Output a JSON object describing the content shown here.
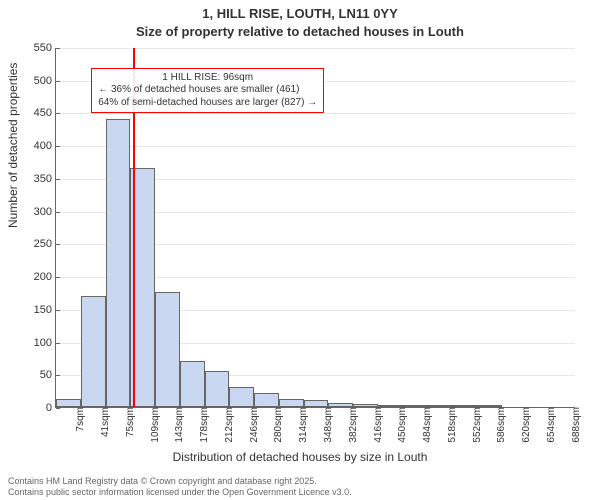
{
  "title_line1": "1, HILL RISE, LOUTH, LN11 0YY",
  "title_line2": "Size of property relative to detached houses in Louth",
  "ylabel": "Number of detached properties",
  "xlabel": "Distribution of detached houses by size in Louth",
  "credits_line1": "Contains HM Land Registry data © Crown copyright and database right 2025.",
  "credits_line2": "Contains public sector information licensed under the Open Government Licence v3.0.",
  "chart": {
    "type": "histogram",
    "y": {
      "min": 0,
      "max": 550,
      "tick_step": 50
    },
    "x": {
      "categories": [
        "7sqm",
        "41sqm",
        "75sqm",
        "109sqm",
        "143sqm",
        "178sqm",
        "212sqm",
        "246sqm",
        "280sqm",
        "314sqm",
        "348sqm",
        "382sqm",
        "416sqm",
        "450sqm",
        "484sqm",
        "518sqm",
        "552sqm",
        "586sqm",
        "620sqm",
        "654sqm",
        "688sqm"
      ]
    },
    "values": [
      12,
      170,
      440,
      365,
      175,
      70,
      55,
      30,
      22,
      12,
      10,
      6,
      4,
      3,
      2,
      1,
      1,
      1,
      0,
      0,
      0
    ],
    "bar_fill": "#c9d8f0",
    "bar_border": "#666666",
    "background": "#ffffff",
    "marker": {
      "position_sqm": 96,
      "color": "#ff0000",
      "label": "1 HILL RISE: 96sqm"
    },
    "annotation": {
      "line_a": "← 36% of detached houses are smaller (461)",
      "line_b": "64% of semi-detached houses are larger (827) →",
      "border_color": "#ff0000"
    },
    "tick_fontsize": 11,
    "label_fontsize": 12,
    "title_fontsize": 13
  }
}
